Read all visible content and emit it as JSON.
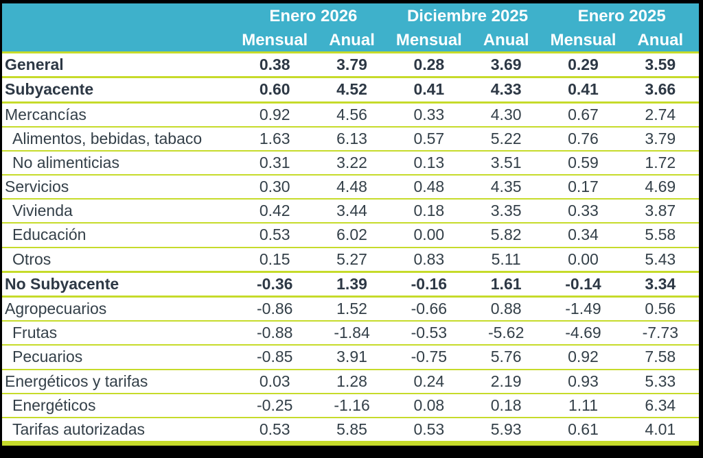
{
  "colors": {
    "teal": "#3EB1CB",
    "green": "#C6DB2A",
    "text": "#333F48",
    "frame": "#000000"
  },
  "chart_data": {
    "type": "table",
    "title": "",
    "column_groups": [
      "Enero 2026",
      "Diciembre 2025",
      "Enero 2025"
    ],
    "sub_columns": [
      "Mensual",
      "Anual"
    ],
    "rows": [
      {
        "label": "General",
        "bold": true,
        "indent": 0,
        "values": [
          "0.38",
          "3.79",
          "0.28",
          "3.69",
          "0.29",
          "3.59"
        ]
      },
      {
        "label": "Subyacente",
        "bold": true,
        "indent": 0,
        "values": [
          "0.60",
          "4.52",
          "0.41",
          "4.33",
          "0.41",
          "3.66"
        ]
      },
      {
        "label": "Mercancías",
        "bold": false,
        "indent": 0,
        "values": [
          "0.92",
          "4.56",
          "0.33",
          "4.30",
          "0.67",
          "2.74"
        ]
      },
      {
        "label": "Alimentos, bebidas, tabaco",
        "bold": false,
        "indent": 1,
        "values": [
          "1.63",
          "6.13",
          "0.57",
          "5.22",
          "0.76",
          "3.79"
        ]
      },
      {
        "label": "No alimenticias",
        "bold": false,
        "indent": 1,
        "values": [
          "0.31",
          "3.22",
          "0.13",
          "3.51",
          "0.59",
          "1.72"
        ]
      },
      {
        "label": "Servicios",
        "bold": false,
        "indent": 0,
        "values": [
          "0.30",
          "4.48",
          "0.48",
          "4.35",
          "0.17",
          "4.69"
        ]
      },
      {
        "label": "Vivienda",
        "bold": false,
        "indent": 1,
        "values": [
          "0.42",
          "3.44",
          "0.18",
          "3.35",
          "0.33",
          "3.87"
        ]
      },
      {
        "label": "Educación",
        "bold": false,
        "indent": 1,
        "values": [
          "0.53",
          "6.02",
          "0.00",
          "5.82",
          "0.34",
          "5.58"
        ]
      },
      {
        "label": "Otros",
        "bold": false,
        "indent": 1,
        "values": [
          "0.15",
          "5.27",
          "0.83",
          "5.11",
          "0.00",
          "5.43"
        ]
      },
      {
        "label": "No Subyacente",
        "bold": true,
        "indent": 0,
        "values": [
          "-0.36",
          "1.39",
          "-0.16",
          "1.61",
          "-0.14",
          "3.34"
        ]
      },
      {
        "label": "Agropecuarios",
        "bold": false,
        "indent": 0,
        "values": [
          "-0.86",
          "1.52",
          "-0.66",
          "0.88",
          "-1.49",
          "0.56"
        ]
      },
      {
        "label": "Frutas",
        "bold": false,
        "indent": 1,
        "values": [
          "-0.88",
          "-1.84",
          "-0.53",
          "-5.62",
          "-4.69",
          "-7.73"
        ]
      },
      {
        "label": "Pecuarios",
        "bold": false,
        "indent": 1,
        "values": [
          "-0.85",
          "3.91",
          "-0.75",
          "5.76",
          "0.92",
          "7.58"
        ]
      },
      {
        "label": "Energéticos y tarifas",
        "bold": false,
        "indent": 0,
        "values": [
          "0.03",
          "1.28",
          "0.24",
          "2.19",
          "0.93",
          "5.33"
        ]
      },
      {
        "label": "Energéticos",
        "bold": false,
        "indent": 1,
        "values": [
          "-0.25",
          "-1.16",
          "0.08",
          "0.18",
          "1.11",
          "6.34"
        ]
      },
      {
        "label": "Tarifas autorizadas",
        "bold": false,
        "indent": 1,
        "values": [
          "0.53",
          "5.85",
          "0.53",
          "5.93",
          "0.61",
          "4.01"
        ]
      }
    ]
  }
}
